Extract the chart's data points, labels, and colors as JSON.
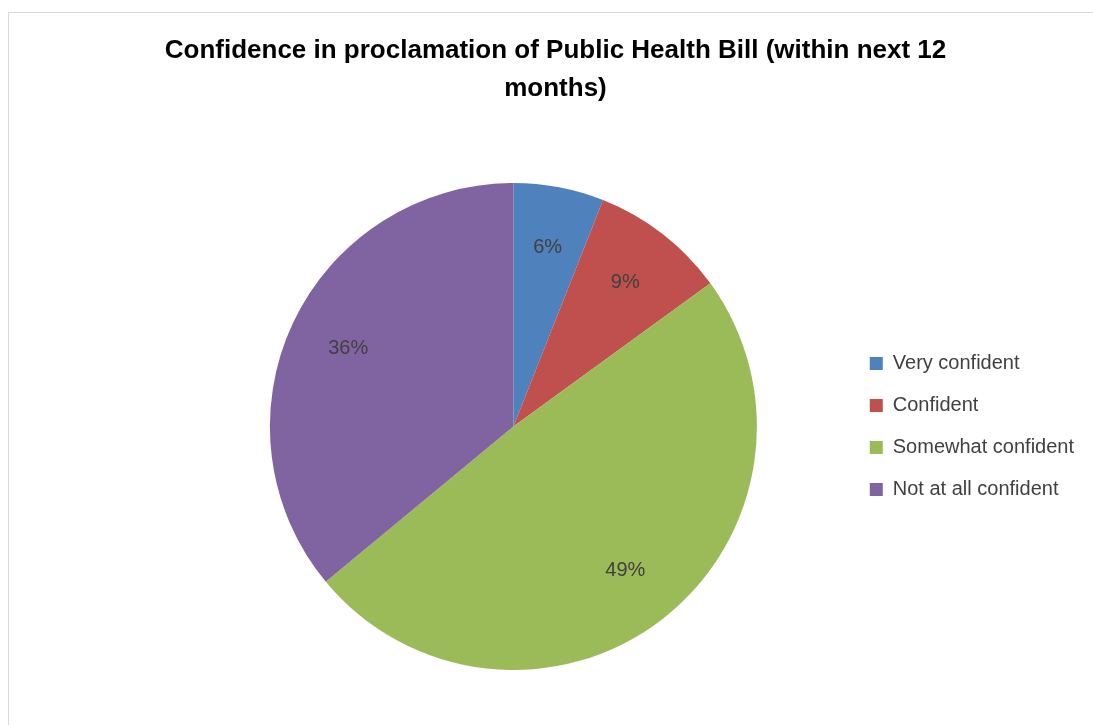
{
  "chart_data": {
    "type": "pie",
    "title": "Confidence in proclamation of Public Health Bill (within next 12 months)",
    "categories": [
      "Very confident",
      "Confident",
      "Somewhat confident",
      "Not at all confident"
    ],
    "values": [
      6,
      9,
      49,
      36
    ],
    "colors": [
      "#4f81bd",
      "#c0504d",
      "#9bbb59",
      "#8064a2"
    ],
    "value_labels": [
      "6%",
      "9%",
      "49%",
      "36%"
    ],
    "legend": "right"
  }
}
